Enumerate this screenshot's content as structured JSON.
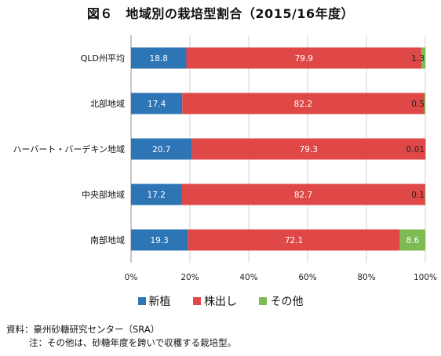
{
  "chart_data": {
    "type": "bar",
    "orientation": "horizontal",
    "stacked": "percent",
    "title": "図６　地域別の栽培型割合（2015/16年度）",
    "categories": [
      "QLD州平均",
      "北部地域",
      "ハーバート・バーデキン地域",
      "中央部地域",
      "南部地域"
    ],
    "series": [
      {
        "name": "新植",
        "color": "#2E75B6",
        "values": [
          18.8,
          17.4,
          20.7,
          17.2,
          19.3
        ],
        "labels": [
          "18.8",
          "17.4",
          "20.7",
          "17.2",
          "19.3"
        ]
      },
      {
        "name": "株出し",
        "color": "#E04848",
        "values": [
          79.9,
          82.2,
          79.3,
          82.7,
          72.1
        ],
        "labels": [
          "79.9",
          "82.2",
          "79.3",
          "82.7",
          "72.1"
        ]
      },
      {
        "name": "その他",
        "color": "#7DBB52",
        "values": [
          1.3,
          0.5,
          0.01,
          0.1,
          8.6
        ],
        "labels": [
          "1.3",
          "0.5",
          "0.01",
          "0.1",
          "8.6"
        ]
      }
    ],
    "xaxis": {
      "ticks": [
        "0%",
        "20%",
        "40%",
        "60%",
        "80%",
        "100%"
      ],
      "range": [
        0,
        100
      ]
    },
    "grid": true,
    "legend_position": "bottom"
  },
  "notes": {
    "source": "資料：豪州砂糖研究センター（SRA）",
    "note": "注：その他は、砂糖年度を跨いで収穫する栽培型。"
  }
}
